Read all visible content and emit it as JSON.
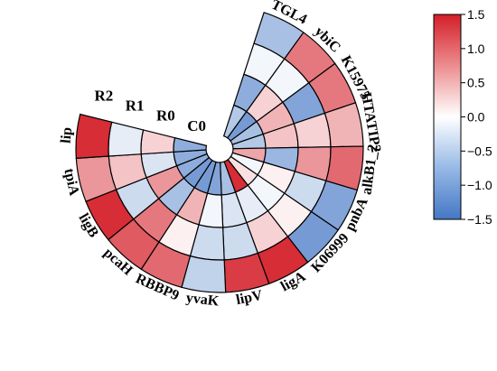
{
  "chart_data": {
    "type": "heatmap",
    "layout": "circular",
    "title": "",
    "rings": [
      "C0",
      "R0",
      "R1",
      "R2"
    ],
    "genes": [
      "TGL4",
      "ybiC",
      "K15975",
      "HTATIP2",
      "alkB1_2",
      "pnbA",
      "K06999",
      "ligA",
      "lipV",
      "yvaK",
      "RBBP9",
      "pcaH",
      "ligB",
      "tpiA",
      "lip"
    ],
    "values": [
      [
        -0.6,
        -0.9,
        -0.1,
        -0.7
      ],
      [
        -1.1,
        0.3,
        -0.1,
        0.9
      ],
      [
        -0.7,
        0.5,
        -1.0,
        0.9
      ],
      [
        -0.6,
        0.4,
        0.3,
        0.5
      ],
      [
        0.6,
        -0.8,
        0.7,
        1.0
      ],
      [
        -0.1,
        0.1,
        -0.4,
        -1.0
      ],
      [
        0.2,
        -0.1,
        0.1,
        -1.1
      ],
      [
        1.4,
        -0.2,
        0.3,
        1.4
      ],
      [
        -0.7,
        -0.3,
        -0.4,
        1.3
      ],
      [
        -1.0,
        -0.1,
        -0.4,
        -0.5
      ],
      [
        -1.1,
        0.5,
        0.1,
        1.0
      ],
      [
        -1.1,
        -0.7,
        0.9,
        1.1
      ],
      [
        -0.9,
        0.7,
        -0.4,
        1.4
      ],
      [
        -0.9,
        -0.3,
        0.4,
        0.7
      ],
      [
        -0.9,
        0.3,
        -0.2,
        1.4
      ]
    ],
    "colorbar": {
      "min": -1.5,
      "max": 1.5,
      "ticks": [
        "1.5",
        "1.0",
        "0.5",
        "0.0",
        "−0.5",
        "−1.0",
        "−1.5"
      ],
      "colors": {
        "low": "#4477c4",
        "mid": "#ffffff",
        "high": "#d31e28"
      }
    }
  }
}
